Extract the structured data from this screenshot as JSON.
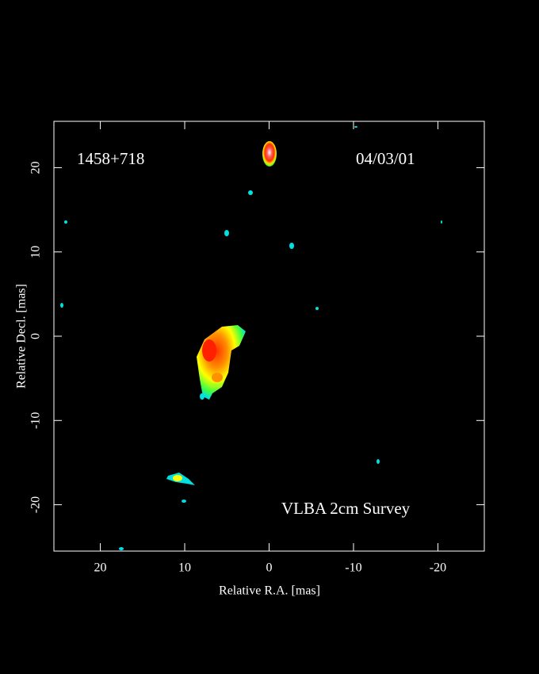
{
  "chart_data": {
    "type": "image",
    "source": "1458+718",
    "date": "04/03/01",
    "survey": "VLBA 2cm Survey",
    "xlabel": "Relative R.A. [mas]",
    "ylabel": "Relative Decl. [mas]",
    "xlim": [
      25.5,
      -25.5
    ],
    "ylim": [
      -25.5,
      25.5
    ],
    "xticks": [
      20,
      10,
      0,
      -10,
      -20
    ],
    "yticks": [
      -20,
      -10,
      0,
      10,
      20
    ]
  }
}
